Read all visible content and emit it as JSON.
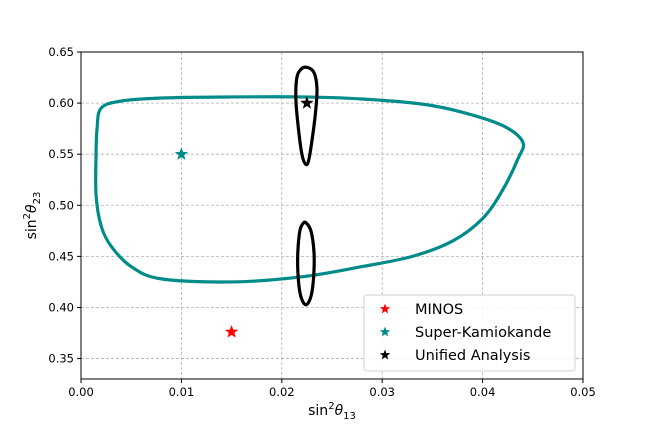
{
  "chart_data": {
    "type": "scatter",
    "xlabel": {
      "base": "sin",
      "sup": "2",
      "sym": "θ",
      "sub": "13"
    },
    "ylabel": {
      "base": "sin",
      "sup": "2",
      "sym": "θ",
      "sub": "23"
    },
    "xlim": [
      0.0,
      0.05
    ],
    "ylim": [
      0.33,
      0.65
    ],
    "x_ticks": [
      "0.00",
      "0.01",
      "0.02",
      "0.03",
      "0.04",
      "0.05"
    ],
    "y_ticks": [
      "0.35",
      "0.40",
      "0.45",
      "0.50",
      "0.55",
      "0.60",
      "0.65"
    ],
    "grid": true,
    "legend_position": "lower-right",
    "points": [
      {
        "name": "MINOS",
        "marker": "star",
        "color": "#ff0000",
        "x": 0.015,
        "y": 0.376
      },
      {
        "name": "Super-Kamiokande",
        "marker": "star",
        "color": "#008b8b",
        "x": 0.01,
        "y": 0.55
      },
      {
        "name": "Unified Analysis",
        "marker": "star",
        "color": "#000000",
        "x": 0.0225,
        "y": 0.6
      }
    ],
    "contours": [
      {
        "color": "#008b8b",
        "points": [
          [
            0.002,
            0.595
          ],
          [
            0.004,
            0.602
          ],
          [
            0.008,
            0.605
          ],
          [
            0.015,
            0.606
          ],
          [
            0.022,
            0.606
          ],
          [
            0.028,
            0.604
          ],
          [
            0.034,
            0.599
          ],
          [
            0.038,
            0.591
          ],
          [
            0.042,
            0.578
          ],
          [
            0.044,
            0.562
          ],
          [
            0.0435,
            0.545
          ],
          [
            0.042,
            0.515
          ],
          [
            0.04,
            0.487
          ],
          [
            0.037,
            0.465
          ],
          [
            0.033,
            0.45
          ],
          [
            0.028,
            0.44
          ],
          [
            0.022,
            0.43
          ],
          [
            0.015,
            0.425
          ],
          [
            0.008,
            0.428
          ],
          [
            0.005,
            0.44
          ],
          [
            0.003,
            0.46
          ],
          [
            0.002,
            0.48
          ],
          [
            0.0015,
            0.51
          ],
          [
            0.0015,
            0.55
          ],
          [
            0.0016,
            0.575
          ]
        ]
      },
      {
        "color": "#000000",
        "points": [
          [
            0.0225,
            0.635
          ],
          [
            0.0232,
            0.63
          ],
          [
            0.0235,
            0.615
          ],
          [
            0.0234,
            0.595
          ],
          [
            0.0231,
            0.57
          ],
          [
            0.0227,
            0.545
          ],
          [
            0.0224,
            0.54
          ],
          [
            0.022,
            0.55
          ],
          [
            0.0216,
            0.58
          ],
          [
            0.0214,
            0.605
          ],
          [
            0.0215,
            0.625
          ],
          [
            0.0219,
            0.633
          ]
        ]
      },
      {
        "color": "#000000",
        "points": [
          [
            0.0224,
            0.483
          ],
          [
            0.0229,
            0.475
          ],
          [
            0.0232,
            0.455
          ],
          [
            0.0232,
            0.435
          ],
          [
            0.023,
            0.415
          ],
          [
            0.0226,
            0.404
          ],
          [
            0.0222,
            0.404
          ],
          [
            0.0218,
            0.415
          ],
          [
            0.0216,
            0.435
          ],
          [
            0.0216,
            0.455
          ],
          [
            0.0218,
            0.475
          ],
          [
            0.0221,
            0.482
          ]
        ]
      }
    ]
  }
}
